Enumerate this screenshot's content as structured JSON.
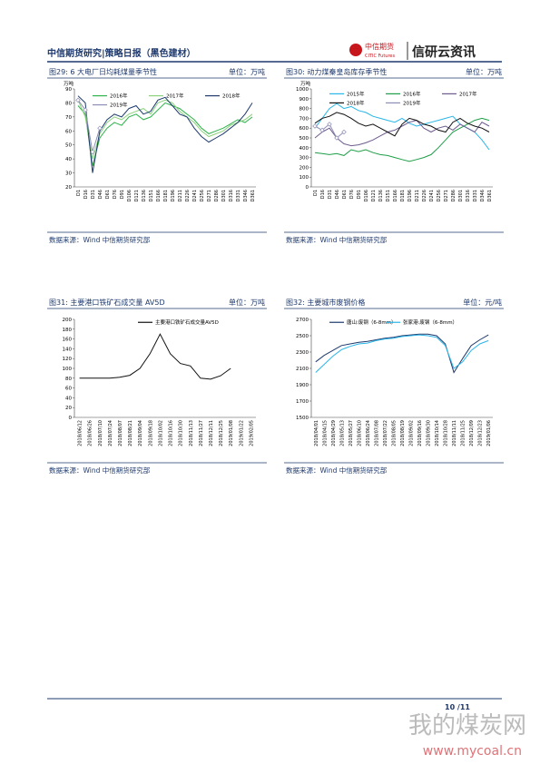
{
  "header": {
    "title": "中信期货研究|策略日报（黑色建材）",
    "logo": "中信期货",
    "logo_en": "CITIC Futures",
    "brand": "信研云资讯"
  },
  "chart_data": [
    {
      "type": "line",
      "title": "图29: 6 大电厂日均耗煤量季节性",
      "unit": "单位：万吨",
      "y_label": "万吨",
      "source": "数据来源：Wind  中信期货研究部",
      "categories": [
        "D1",
        "D16",
        "D31",
        "D46",
        "D61",
        "D76",
        "D91",
        "D106",
        "D121",
        "D136",
        "D151",
        "D166",
        "D181",
        "D196",
        "D211",
        "D226",
        "D241",
        "D256",
        "D271",
        "D286",
        "D301",
        "D316",
        "D331",
        "D346",
        "D361"
      ],
      "ylim": [
        20,
        90
      ],
      "yticks": [
        20,
        30,
        40,
        50,
        60,
        70,
        80,
        90
      ],
      "series": [
        {
          "name": "2016年",
          "color": "#2db34a",
          "values": [
            78,
            72,
            35,
            55,
            62,
            66,
            64,
            70,
            72,
            68,
            70,
            75,
            80,
            78,
            76,
            72,
            68,
            62,
            58,
            60,
            62,
            65,
            68,
            66,
            70
          ]
        },
        {
          "name": "2017年",
          "color": "#8cd17d",
          "values": [
            82,
            70,
            40,
            58,
            66,
            70,
            68,
            72,
            74,
            76,
            72,
            80,
            82,
            80,
            74,
            70,
            66,
            60,
            56,
            58,
            60,
            64,
            66,
            68,
            72
          ]
        },
        {
          "name": "2018年",
          "color": "#1f3a6e",
          "values": [
            85,
            80,
            30,
            60,
            68,
            72,
            70,
            76,
            78,
            72,
            74,
            82,
            84,
            78,
            72,
            70,
            62,
            56,
            52,
            55,
            58,
            62,
            66,
            72,
            80
          ]
        },
        {
          "name": "2019年",
          "color": "#8e8eb4",
          "marker": "diamond",
          "values": [
            82,
            75,
            45,
            62,
            null,
            null,
            null,
            null,
            null,
            null,
            null,
            null,
            null,
            null,
            null,
            null,
            null,
            null,
            null,
            null,
            null,
            null,
            null,
            null,
            null
          ]
        }
      ]
    },
    {
      "type": "line",
      "title": "图30: 动力煤秦皇岛库存季节性",
      "unit": "单位：万吨",
      "y_label": "万吨",
      "source": "数据来源：Wind  中信期货研究部",
      "categories": [
        "D1",
        "D16",
        "D31",
        "D46",
        "D61",
        "D76",
        "D91",
        "D106",
        "D121",
        "D136",
        "D151",
        "D166",
        "D181",
        "D196",
        "D211",
        "D226",
        "D241",
        "D256",
        "D271",
        "D286",
        "D301",
        "D316",
        "D331",
        "D346",
        "D361"
      ],
      "ylim": [
        0,
        1000
      ],
      "yticks": [
        0,
        100,
        200,
        300,
        400,
        500,
        600,
        700,
        800,
        900,
        1000
      ],
      "series": [
        {
          "name": "2015年",
          "color": "#29b6e8",
          "values": [
            600,
            700,
            800,
            850,
            800,
            820,
            780,
            760,
            720,
            700,
            680,
            660,
            700,
            650,
            620,
            640,
            660,
            680,
            700,
            720,
            640,
            600,
            560,
            480,
            380
          ]
        },
        {
          "name": "2016年",
          "color": "#1e9e48",
          "values": [
            350,
            340,
            330,
            340,
            320,
            380,
            360,
            380,
            350,
            330,
            320,
            300,
            280,
            260,
            280,
            300,
            330,
            400,
            480,
            560,
            600,
            640,
            680,
            700,
            680
          ]
        },
        {
          "name": "2017年",
          "color": "#6d5b8e",
          "values": [
            500,
            560,
            600,
            500,
            440,
            420,
            430,
            450,
            480,
            520,
            560,
            580,
            620,
            660,
            680,
            600,
            560,
            600,
            620,
            580,
            640,
            600,
            560,
            660,
            620
          ]
        },
        {
          "name": "2018年",
          "color": "#111111",
          "values": [
            650,
            700,
            720,
            760,
            740,
            700,
            650,
            620,
            640,
            600,
            560,
            520,
            640,
            700,
            680,
            640,
            620,
            580,
            560,
            660,
            700,
            650,
            620,
            600,
            560
          ]
        },
        {
          "name": "2019年",
          "color": "#8e8eb4",
          "marker": "diamond",
          "values": [
            620,
            580,
            640,
            500,
            560,
            null,
            null,
            null,
            null,
            null,
            null,
            null,
            null,
            null,
            null,
            null,
            null,
            null,
            null,
            null,
            null,
            null,
            null,
            null,
            null
          ]
        }
      ]
    },
    {
      "type": "line",
      "title": "图31: 主要港口铁矿石成交量 AV5D",
      "unit": "单位：万吨",
      "source": "数据来源：Wind  中信期货研究部",
      "categories": [
        "2018/06/12",
        "2018/06/26",
        "2018/07/10",
        "2018/07/24",
        "2018/08/07",
        "2018/08/21",
        "2018/09/04",
        "2018/09/18",
        "2018/10/02",
        "2018/10/16",
        "2018/10/30",
        "2018/11/13",
        "2018/11/27",
        "2018/12/11",
        "2018/12/25",
        "2019/01/08",
        "2019/01/22",
        "2019/02/05"
      ],
      "ylim": [
        0,
        200
      ],
      "yticks": [
        0,
        20,
        40,
        60,
        80,
        100,
        120,
        140,
        160,
        180,
        200
      ],
      "series": [
        {
          "name": "主要港口铁矿石成交量AV5D",
          "color": "#111111",
          "values": [
            80,
            80,
            80,
            80,
            82,
            86,
            100,
            130,
            170,
            130,
            110,
            105,
            80,
            78,
            85,
            100,
            null,
            null
          ]
        }
      ]
    },
    {
      "type": "line",
      "title": "图32: 主要城市废钢价格",
      "unit": "单位：元/吨",
      "source": "数据来源：Wind  中信期货研究部",
      "categories": [
        "2018/04/01",
        "2018/04/15",
        "2018/04/29",
        "2018/05/13",
        "2018/05/27",
        "2018/06/10",
        "2018/06/24",
        "2018/07/08",
        "2018/07/22",
        "2018/08/05",
        "2018/08/19",
        "2018/09/02",
        "2018/09/16",
        "2018/09/30",
        "2018/10/14",
        "2018/10/28",
        "2018/11/11",
        "2018/11/25",
        "2018/12/09",
        "2018/12/23",
        "2019/01/06"
      ],
      "ylim": [
        1500,
        2700
      ],
      "yticks": [
        1500,
        1700,
        1900,
        2100,
        2300,
        2500,
        2700
      ],
      "series": [
        {
          "name": "唐山:废钢（6-8mm）",
          "color": "#1f3a6e",
          "values": [
            2180,
            2260,
            2320,
            2380,
            2400,
            2420,
            2430,
            2450,
            2470,
            2480,
            2500,
            2510,
            2520,
            2520,
            2500,
            2400,
            2050,
            2220,
            2380,
            2450,
            2510
          ]
        },
        {
          "name": "张家港:废钢（6-8mm）",
          "color": "#29b6e8",
          "values": [
            2050,
            2150,
            2250,
            2330,
            2370,
            2400,
            2410,
            2440,
            2460,
            2470,
            2490,
            2500,
            2510,
            2500,
            2480,
            2380,
            2100,
            2180,
            2320,
            2400,
            2440
          ]
        }
      ]
    }
  ],
  "footer": {
    "page": "10 /11",
    "watermark": "我的煤炭网",
    "watermark_url": "www.mycoal.cn"
  }
}
